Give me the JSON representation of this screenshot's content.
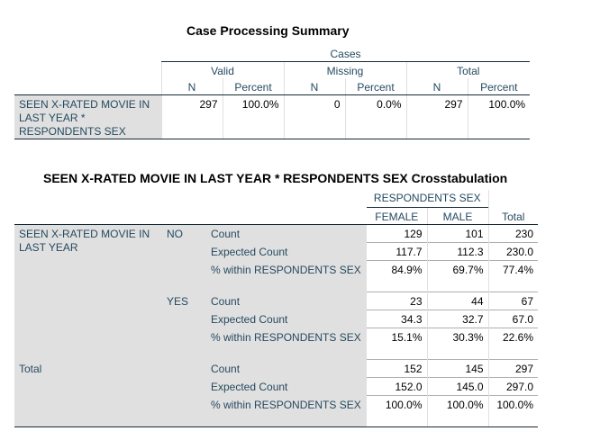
{
  "summary": {
    "title": "Case Processing Summary",
    "cases_label": "Cases",
    "groups": [
      "Valid",
      "Missing",
      "Total"
    ],
    "sub_headers": [
      "N",
      "Percent",
      "N",
      "Percent",
      "N",
      "Percent"
    ],
    "row_label": "SEEN X-RATED MOVIE IN LAST YEAR * RESPONDENTS SEX",
    "values": [
      "297",
      "100.0%",
      "0",
      "0.0%",
      "297",
      "100.0%"
    ]
  },
  "crosstab": {
    "title": "SEEN X-RATED MOVIE IN LAST YEAR * RESPONDENTS SEX Crosstabulation",
    "col_group": "RESPONDENTS SEX",
    "columns": [
      "FEMALE",
      "MALE"
    ],
    "total_col": "Total",
    "row_var": "SEEN X-RATED MOVIE IN LAST YEAR",
    "total_row": "Total",
    "stat_labels": [
      "Count",
      "Expected Count",
      "% within RESPONDENTS SEX"
    ],
    "groups": [
      {
        "label": "NO",
        "rows": [
          [
            "129",
            "101",
            "230"
          ],
          [
            "117.7",
            "112.3",
            "230.0"
          ],
          [
            "84.9%",
            "69.7%",
            "77.4%"
          ]
        ]
      },
      {
        "label": "YES",
        "rows": [
          [
            "23",
            "44",
            "67"
          ],
          [
            "34.3",
            "32.7",
            "67.0"
          ],
          [
            "15.1%",
            "30.3%",
            "22.6%"
          ]
        ]
      }
    ],
    "total_rows": [
      [
        "152",
        "145",
        "297"
      ],
      [
        "152.0",
        "145.0",
        "297.0"
      ],
      [
        "100.0%",
        "100.0%",
        "100.0%"
      ]
    ]
  }
}
